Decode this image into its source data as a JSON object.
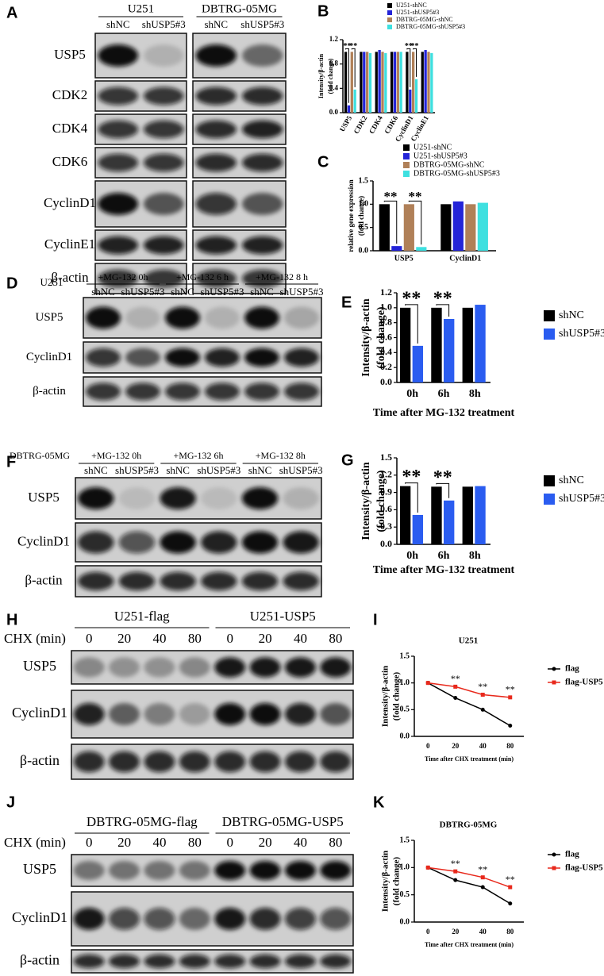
{
  "blots": {
    "A": {
      "letter": "A",
      "groups": [
        "U251",
        "DBTRG-05MG"
      ],
      "lanes": [
        "shNC",
        "shUSP5#3",
        "shNC",
        "shUSP5#3"
      ],
      "rows": [
        "USP5",
        "CDK2",
        "CDK4",
        "CDK6",
        "CyclinD1",
        "CyclinE1",
        "β-actin"
      ]
    },
    "D": {
      "letter": "D",
      "cell": "U251",
      "groups": [
        "+MG-132 0h",
        "+MG-132 6 h",
        "+MG-132 8 h"
      ],
      "lanes": [
        "shNC",
        "shUSP5#3",
        "shNC",
        "shUSP5#3",
        "shNC",
        "shUSP5#3"
      ],
      "rows": [
        "USP5",
        "CyclinD1",
        "β-actin"
      ]
    },
    "F": {
      "letter": "F",
      "cell": "DBTRG-05MG",
      "groups": [
        "+MG-132 0h",
        "+MG-132 6h",
        "+MG-132 8h"
      ],
      "lanes": [
        "shNC",
        "shUSP5#3",
        "shNC",
        "shUSP5#3",
        "shNC",
        "shUSP5#3"
      ],
      "rows": [
        "USP5",
        "CyclinD1",
        "β-actin"
      ]
    },
    "H": {
      "letter": "H",
      "groups": [
        "U251-flag",
        "U251-USP5"
      ],
      "lane_title": "CHX (min)",
      "lanes": [
        "0",
        "20",
        "40",
        "80",
        "0",
        "20",
        "40",
        "80"
      ],
      "rows": [
        "USP5",
        "CyclinD1",
        "β-actin"
      ]
    },
    "J": {
      "letter": "J",
      "groups": [
        "DBTRG-05MG-flag",
        "DBTRG-05MG-USP5"
      ],
      "lane_title": "CHX (min)",
      "lanes": [
        "0",
        "20",
        "40",
        "80",
        "0",
        "20",
        "40",
        "80"
      ],
      "rows": [
        "USP5",
        "CyclinD1",
        "β-actin"
      ]
    }
  },
  "chart_data": [
    {
      "type": "bar",
      "panel": "B",
      "ylabel": [
        "Intensity/β-actin",
        "(fold change)"
      ],
      "categories": [
        "USP5",
        "CDK2",
        "CDK4",
        "CDK6",
        "CyclinD1",
        "CyclinE1"
      ],
      "series": [
        {
          "name": "U251-shNC",
          "color": "#000000",
          "values": [
            1.0,
            1.0,
            1.0,
            1.0,
            1.0,
            1.0
          ]
        },
        {
          "name": "U251-shUSP5#3",
          "color": "#2424d8",
          "values": [
            0.12,
            1.0,
            1.03,
            1.0,
            0.38,
            1.03
          ]
        },
        {
          "name": "DBTRG-05MG-shNC",
          "color": "#b08058",
          "values": [
            1.0,
            1.0,
            1.0,
            1.0,
            1.0,
            1.0
          ]
        },
        {
          "name": "DBTRG-05MG-shUSP5#3",
          "color": "#3ee0e0",
          "values": [
            0.38,
            0.98,
            0.98,
            1.0,
            0.55,
            0.98
          ]
        }
      ],
      "ylim": [
        0,
        1.2
      ],
      "yticks": [
        {
          "value": 0,
          "label": "0.0"
        },
        0.4,
        0.8,
        1.2
      ],
      "annotations": [
        "**",
        "**",
        "**",
        "**"
      ]
    },
    {
      "type": "bar",
      "panel": "C",
      "ylabel": [
        "relative gene expression",
        "(fold change)"
      ],
      "categories": [
        "USP5",
        "CyclinD1"
      ],
      "series": [
        {
          "name": "U251-shNC",
          "color": "#000000",
          "values": [
            1.0,
            1.0
          ]
        },
        {
          "name": "U251-shUSP5#3",
          "color": "#2424d8",
          "values": [
            0.1,
            1.06
          ]
        },
        {
          "name": "DBTRG-05MG-shNC",
          "color": "#b08058",
          "values": [
            1.0,
            1.0
          ]
        },
        {
          "name": "DBTRG-05MG-shUSP5#3",
          "color": "#3ee0e0",
          "values": [
            0.08,
            1.03
          ]
        }
      ],
      "ylim": [
        0,
        1.5
      ],
      "yticks": [
        {
          "value": 0,
          "label": "0.0"
        },
        0.5,
        {
          "value": 1,
          "label": "1.0"
        },
        1.5
      ],
      "annotations": [
        "**",
        "**"
      ]
    },
    {
      "type": "bar",
      "panel": "E",
      "ylabel": [
        "Intensity/β-actin",
        "(fold change)"
      ],
      "xlabel": "Time after MG-132 treatment",
      "categories": [
        "0h",
        "6h",
        "8h"
      ],
      "series": [
        {
          "name": "shNC",
          "color": "#000000",
          "values": [
            1.0,
            1.0,
            1.0
          ]
        },
        {
          "name": "shUSP5#3",
          "color": "#2a5cf0",
          "values": [
            0.49,
            0.85,
            1.04
          ]
        }
      ],
      "ylim": [
        0,
        1.2
      ],
      "yticks": [
        {
          "value": 0,
          "label": "0.0"
        },
        0.2,
        0.4,
        0.6,
        0.8,
        {
          "value": 1,
          "label": "1.0"
        },
        1.2
      ],
      "annotations": [
        "**",
        "**"
      ]
    },
    {
      "type": "bar",
      "panel": "G",
      "ylabel": [
        "Intensity/β-actin",
        "(fold change)"
      ],
      "xlabel": "Time after MG-132 treatment",
      "categories": [
        "0h",
        "6h",
        "8h"
      ],
      "series": [
        {
          "name": "shNC",
          "color": "#000000",
          "values": [
            1.01,
            1.0,
            1.0
          ]
        },
        {
          "name": "shUSP5#3",
          "color": "#2a5cf0",
          "values": [
            0.51,
            0.76,
            1.01
          ]
        }
      ],
      "ylim": [
        0,
        1.5
      ],
      "yticks": [
        {
          "value": 0,
          "label": "0.0"
        },
        0.3,
        0.6,
        0.9,
        1.2,
        1.5
      ],
      "annotations": [
        "**",
        "**"
      ]
    },
    {
      "type": "line",
      "panel": "I",
      "title": "U251",
      "ylabel": [
        "Intensity/β-actin",
        "(fold change)"
      ],
      "xlabel": "Time after CHX treatment  (min)",
      "categories": [
        "0",
        "20",
        "40",
        "80"
      ],
      "series": [
        {
          "name": "flag",
          "color": "#000000",
          "values": [
            1.0,
            0.72,
            0.5,
            0.2
          ]
        },
        {
          "name": "flag-USP5",
          "color": "#e8291c",
          "values": [
            1.0,
            0.93,
            0.78,
            0.73
          ]
        }
      ],
      "ylim": [
        0,
        1.5
      ],
      "yticks": [
        {
          "value": 0,
          "label": "0.0"
        },
        0.5,
        {
          "value": 1,
          "label": "1.0"
        },
        1.5
      ],
      "annotations": [
        "**",
        "**",
        "**"
      ]
    },
    {
      "type": "line",
      "panel": "K",
      "title": "DBTRG-05MG",
      "ylabel": [
        "Intensity/β-actin",
        "(fold change)"
      ],
      "xlabel": "Time after CHX treatment  (min)",
      "categories": [
        "0",
        "20",
        "40",
        "80"
      ],
      "series": [
        {
          "name": "flag",
          "color": "#000000",
          "values": [
            1.0,
            0.77,
            0.64,
            0.34
          ]
        },
        {
          "name": "flag-USP5",
          "color": "#e8291c",
          "values": [
            1.0,
            0.93,
            0.82,
            0.64
          ]
        }
      ],
      "ylim": [
        0,
        1.5
      ],
      "yticks": [
        {
          "value": 0,
          "label": "0.0"
        },
        0.5,
        {
          "value": 1,
          "label": "1.0"
        },
        1.5
      ],
      "annotations": [
        "**",
        "**",
        "**"
      ]
    }
  ]
}
